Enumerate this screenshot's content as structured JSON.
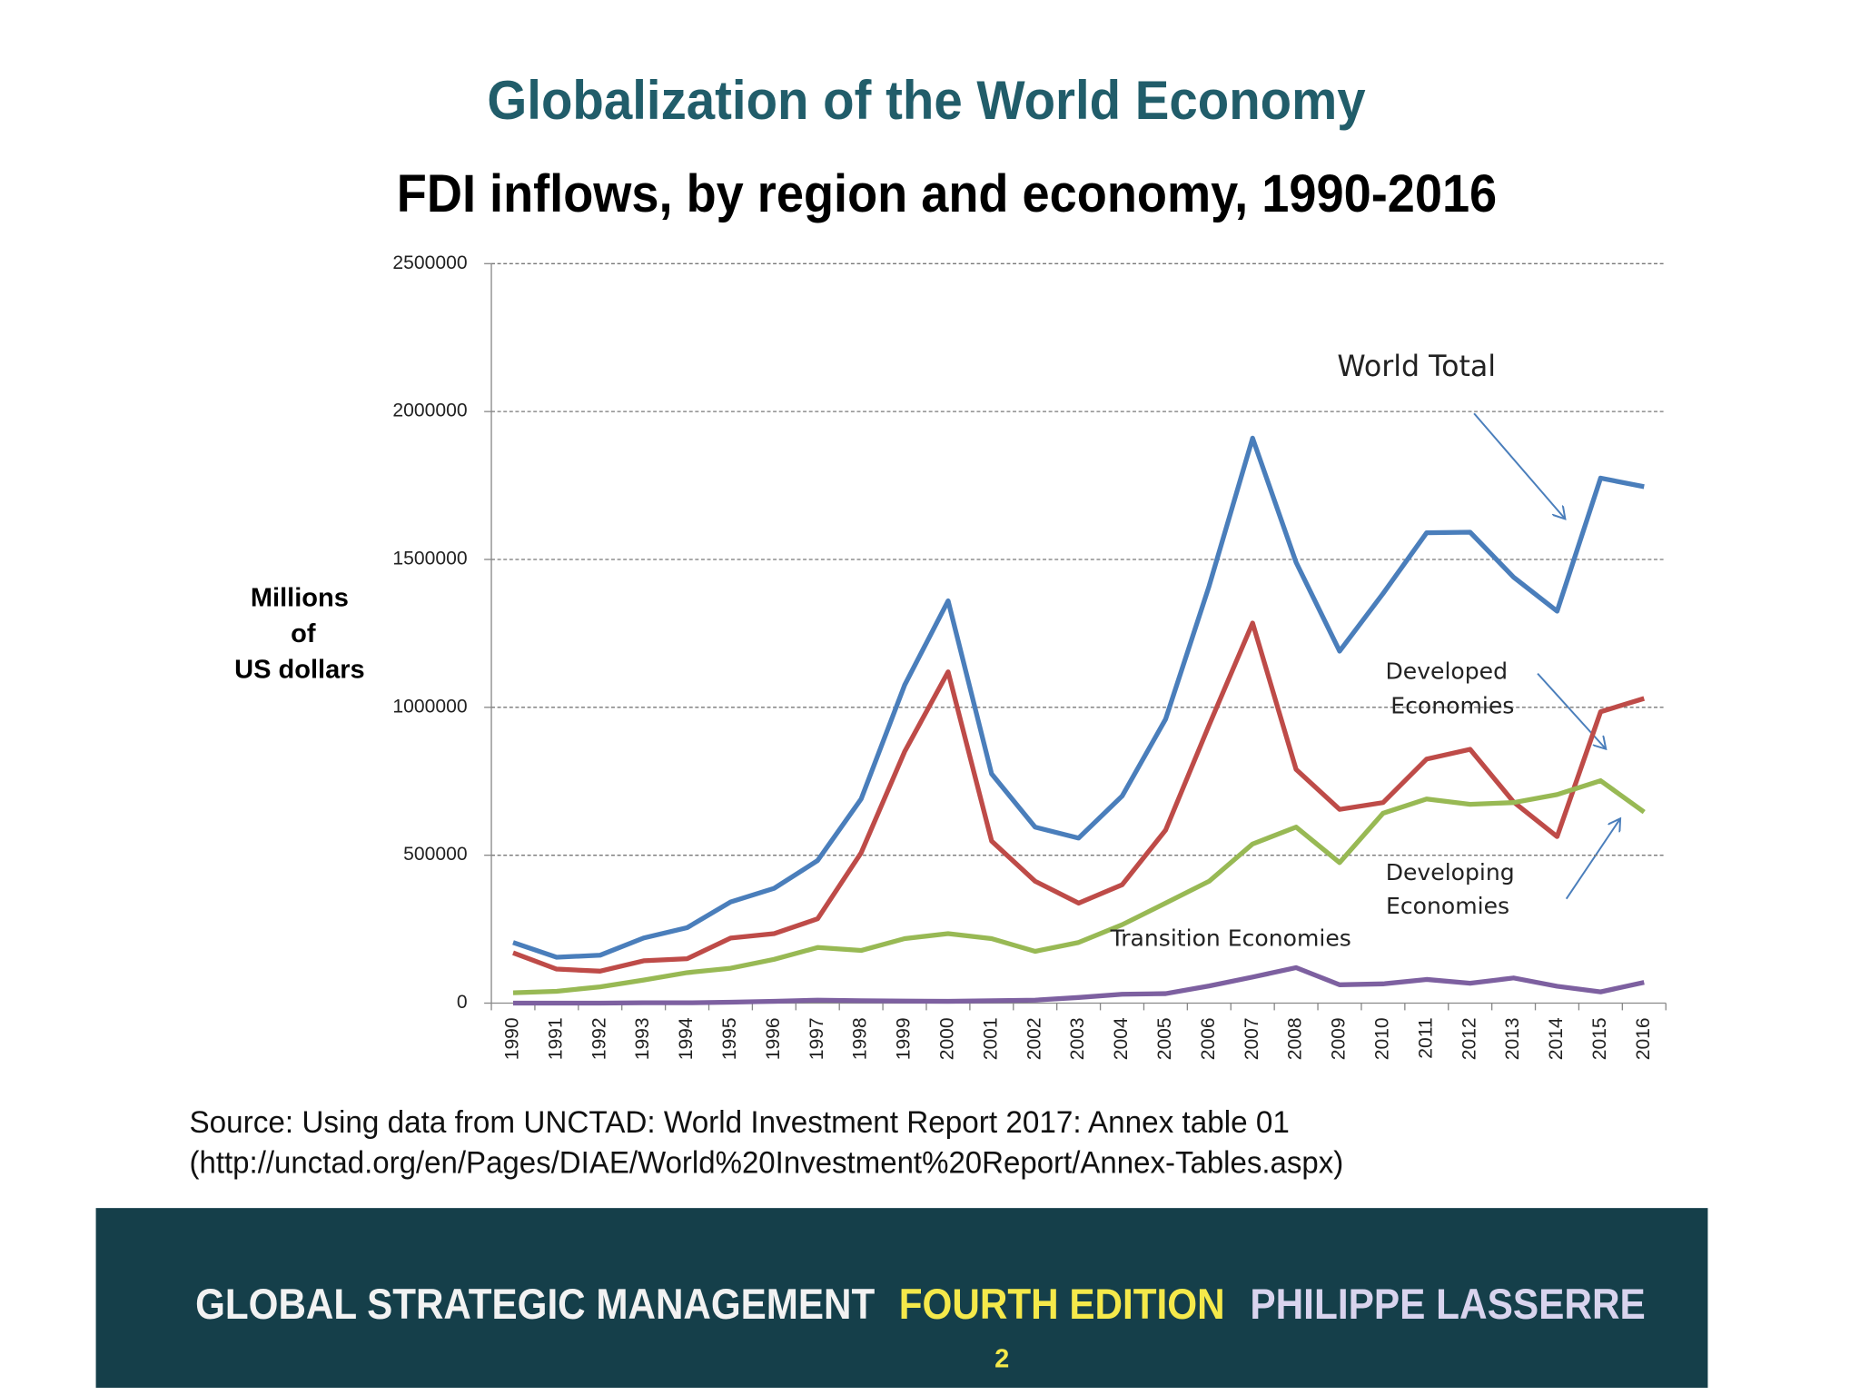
{
  "chart_data": {
    "type": "line",
    "title": "Globalization of the World Economy",
    "subtitle": "FDI inflows, by region and economy, 1990-2016",
    "y_label": [
      "Millions",
      "of",
      "US dollars"
    ],
    "categories": [
      "1990",
      "1991",
      "1992",
      "1993",
      "1994",
      "1995",
      "1996",
      "1997",
      "1998",
      "1999",
      "2000",
      "2001",
      "2002",
      "2003",
      "2004",
      "2005",
      "2006",
      "2007",
      "2008",
      "2009",
      "2010",
      "2011",
      "2012",
      "2013",
      "2014",
      "2015",
      "2016"
    ],
    "series": [
      {
        "color": "#4a7ebb",
        "values": [
          205000,
          155000,
          162000,
          220000,
          255000,
          342000,
          388000,
          482000,
          690000,
          1075000,
          1360000,
          775000,
          595000,
          558000,
          700000,
          960000,
          1410000,
          1910000,
          1490000,
          1190000,
          1385000,
          1590000,
          1592000,
          1440000,
          1325000,
          1775000,
          1746000
        ]
      },
      {
        "color": "#be4b48",
        "values": [
          170000,
          115000,
          108000,
          143000,
          150000,
          220000,
          235000,
          285000,
          508000,
          850000,
          1120000,
          548000,
          412000,
          338000,
          400000,
          585000,
          940000,
          1285000,
          790000,
          655000,
          678000,
          825000,
          858000,
          680000,
          563000,
          985000,
          1030000
        ]
      },
      {
        "color": "#98b954",
        "values": [
          35000,
          40000,
          55000,
          78000,
          103000,
          118000,
          148000,
          188000,
          178000,
          218000,
          235000,
          218000,
          175000,
          205000,
          265000,
          338000,
          412000,
          538000,
          595000,
          475000,
          642000,
          690000,
          672000,
          678000,
          705000,
          752000,
          646000
        ]
      },
      {
        "color": "#7d60a0",
        "values": [
          0,
          0,
          0,
          1000,
          1000,
          3000,
          6000,
          10000,
          8000,
          7000,
          6000,
          8000,
          10000,
          19000,
          30000,
          32000,
          58000,
          88000,
          120000,
          62000,
          65000,
          80000,
          67000,
          85000,
          57000,
          38000,
          70000
        ]
      }
    ],
    "ylim": [
      0,
      2500000
    ],
    "yticks": [
      0,
      500000,
      1000000,
      1500000,
      2000000,
      2500000
    ],
    "grid": true,
    "annotations": [
      {
        "lines": [
          "World Total"
        ]
      },
      {
        "lines": [
          "Developed",
          "Economies"
        ]
      },
      {
        "lines": [
          "Developing",
          "Economies"
        ]
      },
      {
        "lines": [
          "Transition Economies"
        ]
      }
    ],
    "source": [
      "Source: Using data from UNCTAD: World Investment Report 2017: Annex table  01",
      "(http://unctad.org/en/Pages/DIAE/World%20Investment%20Report/Annex-Tables.aspx)"
    ]
  },
  "footer": {
    "book": "GLOBAL STRATEGIC MANAGEMENT",
    "edition": "FOURTH EDITION",
    "author": "PHILIPPE LASSERRE",
    "page": "2"
  }
}
